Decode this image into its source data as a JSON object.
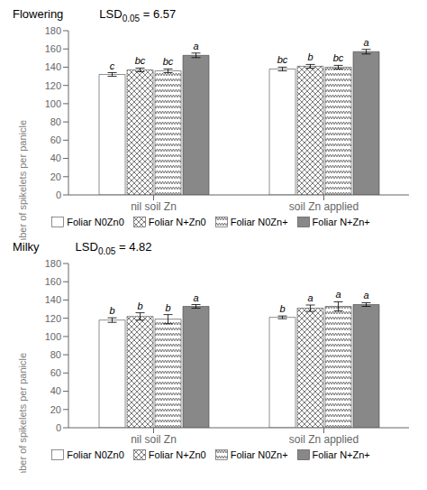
{
  "chart_data": [
    {
      "type": "bar",
      "title": "Flowering",
      "subtitle": [
        "LSD",
        "0.05",
        " = 6.57"
      ],
      "ylabel": "Number of spikelets per panicle",
      "categories": [
        "nil soil Zn",
        "soil Zn applied"
      ],
      "series": [
        {
          "name": "Foliar N0Zn0",
          "color": "white",
          "values": [
            132,
            138
          ],
          "errors": [
            2.0,
            2.0
          ],
          "letters": [
            "c",
            "bc"
          ]
        },
        {
          "name": "Foliar N+Zn0",
          "color": "white",
          "values": [
            137,
            141
          ],
          "errors": [
            2.0,
            2.0
          ],
          "letters": [
            "bc",
            "b"
          ]
        },
        {
          "name": "Foliar N0Zn+",
          "color": "white",
          "values": [
            136,
            140
          ],
          "errors": [
            2.0,
            2.0
          ],
          "letters": [
            "bc",
            "bc"
          ]
        },
        {
          "name": "Foliar N+Zn+",
          "color": "#888888",
          "values": [
            153,
            157
          ],
          "errors": [
            2.5,
            2.5
          ],
          "letters": [
            "a",
            "a"
          ]
        }
      ],
      "ylim": [
        0,
        180
      ],
      "yticks": [
        0,
        20,
        40,
        60,
        80,
        100,
        120,
        140,
        160,
        180
      ],
      "grid": false,
      "legend": "bottom"
    },
    {
      "type": "bar",
      "title": "Milky",
      "subtitle": [
        "LSD",
        "0.05",
        " = 4.82"
      ],
      "ylabel": "Number of spikelets per panicle",
      "categories": [
        "nil soil Zn",
        "soil Zn applied"
      ],
      "series": [
        {
          "name": "Foliar N0Zn0",
          "color": "white",
          "values": [
            118,
            121
          ],
          "errors": [
            2.5,
            1.5
          ],
          "letters": [
            "b",
            "b"
          ]
        },
        {
          "name": "Foliar N+Zn0",
          "color": "white",
          "values": [
            122,
            131
          ],
          "errors": [
            4.0,
            3.5
          ],
          "letters": [
            "b",
            "a"
          ]
        },
        {
          "name": "Foliar N0Zn+",
          "color": "white",
          "values": [
            119,
            133
          ],
          "errors": [
            5.0,
            5.0
          ],
          "letters": [
            "b",
            "a"
          ]
        },
        {
          "name": "Foliar N+Zn+",
          "color": "#888888",
          "values": [
            133,
            135
          ],
          "errors": [
            2.0,
            2.0
          ],
          "letters": [
            "a",
            "a"
          ]
        }
      ],
      "ylim": [
        0,
        180
      ],
      "yticks": [
        0,
        20,
        40,
        60,
        80,
        100,
        120,
        140,
        160,
        180
      ],
      "grid": false,
      "legend": "bottom"
    }
  ]
}
